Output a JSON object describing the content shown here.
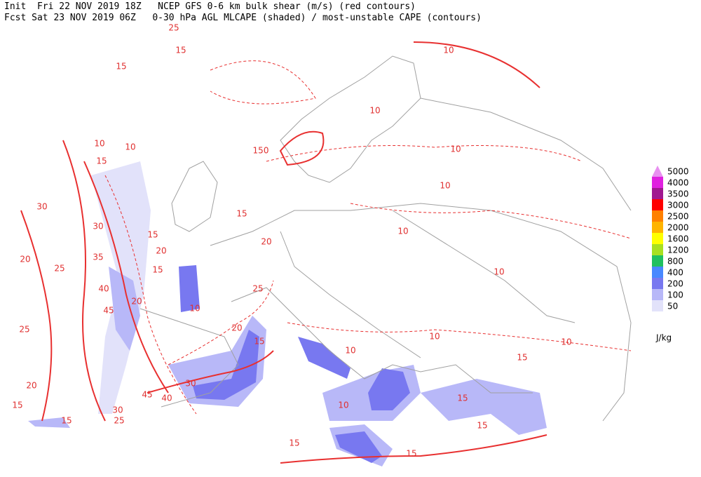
{
  "header": {
    "line1": "Init  Fri 22 NOV 2019 18Z   NCEP GFS 0-6 km bulk shear (m/s) (red contours)",
    "line2": "Fcst Sat 23 NOV 2019 06Z   0-30 hPa AGL MLCAPE (shaded) / most-unstable CAPE (contours)"
  },
  "legend": {
    "items": [
      {
        "label": "5000",
        "color": "#e890f0"
      },
      {
        "label": "4000",
        "color": "#e020e0"
      },
      {
        "label": "3500",
        "color": "#a01890"
      },
      {
        "label": "3000",
        "color": "#ff0000"
      },
      {
        "label": "2500",
        "color": "#ff8000"
      },
      {
        "label": "2000",
        "color": "#ffb400"
      },
      {
        "label": "1600",
        "color": "#ffff00"
      },
      {
        "label": "1200",
        "color": "#a8e020"
      },
      {
        "label": "800",
        "color": "#20c060"
      },
      {
        "label": "400",
        "color": "#4888ff"
      },
      {
        "label": "200",
        "color": "#7878f0"
      },
      {
        "label": "100",
        "color": "#b8b8f8"
      },
      {
        "label": "50",
        "color": "#e2e2fa"
      }
    ],
    "unit": "J/kg"
  },
  "contour_labels": [
    "25",
    "15",
    "15",
    "10",
    "15",
    "10",
    "30",
    "20",
    "25",
    "30",
    "35",
    "40",
    "45",
    "25",
    "20",
    "15",
    "30",
    "25",
    "15",
    "20",
    "15",
    "25",
    "20",
    "15",
    "30",
    "40",
    "45",
    "10",
    "150",
    "10",
    "10",
    "10",
    "10",
    "10",
    "10",
    "10",
    "15",
    "15",
    "15",
    "10",
    "15",
    "15",
    "10",
    "10",
    "20",
    "15",
    "20",
    "15"
  ]
}
